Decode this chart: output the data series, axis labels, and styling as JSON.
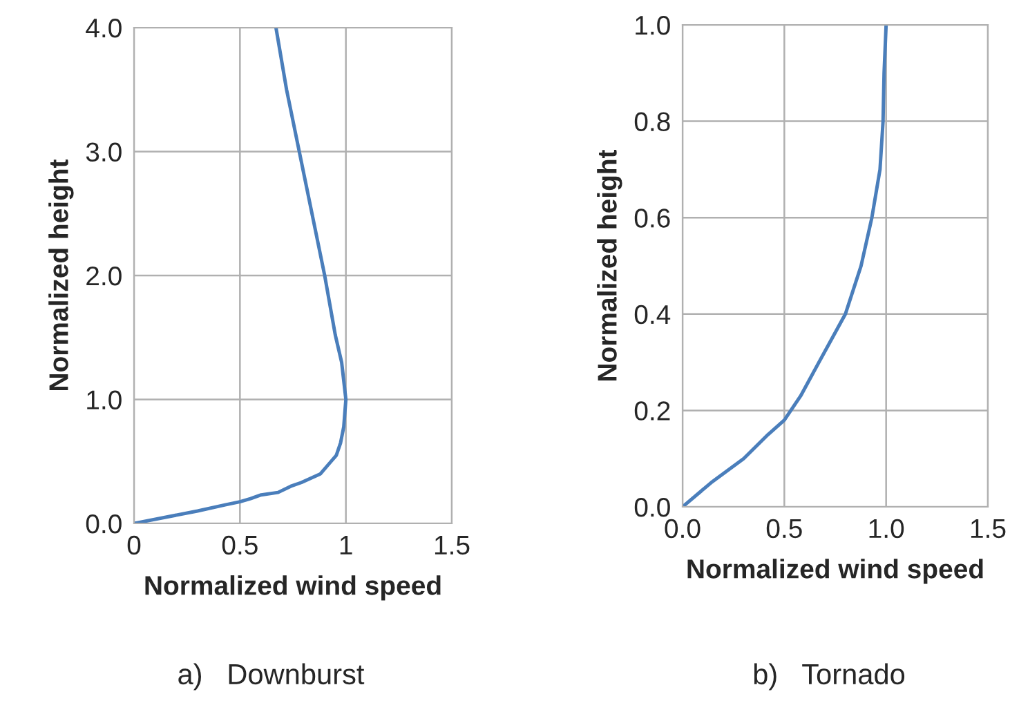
{
  "chart_data": [
    {
      "type": "line",
      "xlabel": "Normalized wind speed",
      "ylabel": "Normalized height",
      "annotations": [
        "a)   Downburst"
      ],
      "series": [
        {
          "color": "#4a7ebb",
          "x": [
            0,
            0.15,
            0.3,
            0.43,
            0.5,
            0.55,
            0.6,
            0.68,
            0.74,
            0.79,
            0.88,
            0.93,
            0.955,
            0.975,
            0.99,
            1.0,
            0.98,
            0.95,
            0.9,
            0.84,
            0.78,
            0.72,
            0.67
          ],
          "values": [
            0,
            0.05,
            0.1,
            0.15,
            0.175,
            0.2,
            0.23,
            0.25,
            0.3,
            0.33,
            0.4,
            0.5,
            0.55,
            0.65,
            0.78,
            1.0,
            1.3,
            1.52,
            2.0,
            2.5,
            3.0,
            3.5,
            4.0
          ]
        }
      ],
      "xlim": [
        0,
        1.5
      ],
      "xticks": [
        0,
        0.5,
        1,
        1.5
      ],
      "ylim": [
        0,
        4.0
      ],
      "yticks": [
        {
          "value": 0,
          "label": "0.0"
        },
        {
          "value": 1,
          "label": "1.0"
        },
        {
          "value": 2,
          "label": "2.0"
        },
        {
          "value": 3,
          "label": "3.0"
        },
        {
          "value": 4,
          "label": "4.0"
        }
      ],
      "grid": true
    },
    {
      "type": "line",
      "xlabel": "Normalized wind speed",
      "ylabel": "Normalized height",
      "annotations": [
        "b)   Tornado"
      ],
      "series": [
        {
          "color": "#4a7ebb",
          "x": [
            0,
            0.14,
            0.3,
            0.42,
            0.5,
            0.58,
            0.67,
            0.8,
            0.877,
            0.93,
            0.97,
            0.985,
            0.99,
            1.0
          ],
          "values": [
            0,
            0.05,
            0.1,
            0.15,
            0.18,
            0.23,
            0.3,
            0.4,
            0.5,
            0.6,
            0.7,
            0.8,
            0.9,
            1.0
          ]
        }
      ],
      "xlim": [
        0,
        1.5
      ],
      "xticks": [
        {
          "value": 0,
          "label": "0.0"
        },
        0.5,
        {
          "value": 1,
          "label": "1.0"
        },
        1.5
      ],
      "ylim": [
        0,
        1.0
      ],
      "yticks": [
        {
          "value": 0,
          "label": "0.0"
        },
        0.2,
        0.4,
        0.6,
        0.8,
        {
          "value": 1,
          "label": "1.0"
        }
      ],
      "grid": true
    }
  ]
}
